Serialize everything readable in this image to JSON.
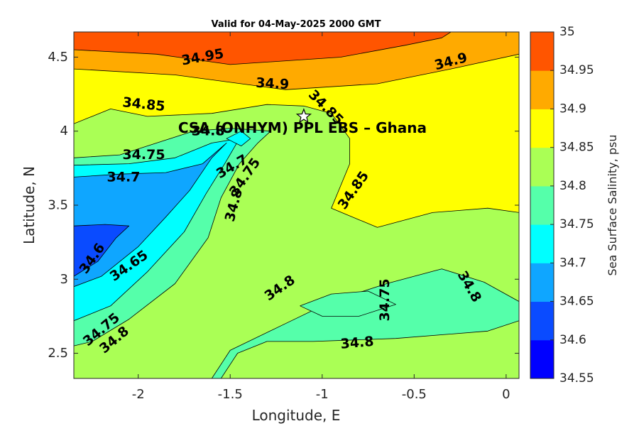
{
  "chart_data": {
    "type": "filled-contour",
    "title": "Valid for 04-May-2025 2000 GMT",
    "xlabel": "Longitude, E",
    "ylabel": "Latitude, N",
    "xlim": [
      -2.35,
      0.07
    ],
    "ylim": [
      2.33,
      4.67
    ],
    "x_ticks": [
      -2,
      -1.5,
      -1,
      -0.5,
      0
    ],
    "x_tick_labels": [
      "-2",
      "-1.5",
      "-1",
      "-0.5",
      "0"
    ],
    "y_ticks": [
      2.5,
      3,
      3.5,
      4,
      4.5
    ],
    "y_tick_labels": [
      "2.5",
      "3",
      "3.5",
      "4",
      "4.5"
    ],
    "colorbar": {
      "label": "Sea Surface Salinity, psu",
      "levels": [
        34.55,
        34.6,
        34.65,
        34.7,
        34.75,
        34.8,
        34.85,
        34.9,
        34.95,
        35
      ],
      "level_labels": [
        "34.55",
        "34.6",
        "34.65",
        "34.7",
        "34.75",
        "34.8",
        "34.85",
        "34.9",
        "34.95",
        "35"
      ],
      "colors": [
        "#0000ff",
        "#0a4bff",
        "#0fa6ff",
        "#00ffff",
        "#55ffaa",
        "#aaff55",
        "#ffff00",
        "#ffaa00",
        "#ff5500"
      ]
    },
    "site": {
      "label": "CSA (ONHYM) PPL EBS  – Ghana",
      "lon": -1.1,
      "lat": 4.1
    },
    "contour_labels": [
      {
        "text": "34.95",
        "lon": -1.65,
        "lat": 4.5,
        "angle": -10
      },
      {
        "text": "34.9",
        "lon": -1.27,
        "lat": 4.32,
        "angle": 3
      },
      {
        "text": "34.9",
        "lon": -0.3,
        "lat": 4.47,
        "angle": -15
      },
      {
        "text": "34.85",
        "lon": -1.97,
        "lat": 4.18,
        "angle": 6
      },
      {
        "text": "34.85",
        "lon": -0.98,
        "lat": 4.16,
        "angle": 45
      },
      {
        "text": "34.85",
        "lon": -0.83,
        "lat": 3.6,
        "angle": -55
      },
      {
        "text": "34.8",
        "lon": -1.62,
        "lat": 4.0,
        "angle": 0
      },
      {
        "text": "34.75",
        "lon": -1.97,
        "lat": 3.84,
        "angle": 0
      },
      {
        "text": "34.7",
        "lon": -2.08,
        "lat": 3.69,
        "angle": 0
      },
      {
        "text": "34.7",
        "lon": -1.49,
        "lat": 3.76,
        "angle": -30
      },
      {
        "text": "34.75",
        "lon": -1.42,
        "lat": 3.69,
        "angle": -55
      },
      {
        "text": "34.8",
        "lon": -1.48,
        "lat": 3.5,
        "angle": -75
      },
      {
        "text": "34.6",
        "lon": -2.25,
        "lat": 3.14,
        "angle": -55
      },
      {
        "text": "34.65",
        "lon": -2.05,
        "lat": 3.09,
        "angle": -35
      },
      {
        "text": "34.75",
        "lon": -2.2,
        "lat": 2.66,
        "angle": -40
      },
      {
        "text": "34.8",
        "lon": -2.13,
        "lat": 2.59,
        "angle": -40
      },
      {
        "text": "34.8",
        "lon": -1.23,
        "lat": 2.94,
        "angle": -35
      },
      {
        "text": "34.75",
        "lon": -0.66,
        "lat": 2.86,
        "angle": -90
      },
      {
        "text": "34.8",
        "lon": -0.2,
        "lat": 2.95,
        "angle": 60
      },
      {
        "text": "34.8",
        "lon": -0.81,
        "lat": 2.57,
        "angle": -5
      }
    ],
    "filled_regions": [
      {
        "level": 34.8,
        "points": [
          [
            -2.35,
            2.33
          ],
          [
            0.07,
            2.33
          ],
          [
            0.07,
            4.67
          ],
          [
            -2.35,
            4.67
          ]
        ]
      },
      {
        "level": 34.75,
        "points": [
          [
            -2.35,
            2.55
          ],
          [
            -2.25,
            2.58
          ],
          [
            -2.05,
            2.73
          ],
          [
            -1.8,
            2.97
          ],
          [
            -1.62,
            3.28
          ],
          [
            -1.55,
            3.55
          ],
          [
            -1.45,
            3.78
          ],
          [
            -1.35,
            3.92
          ],
          [
            -1.28,
            4.0
          ],
          [
            -1.5,
            4.02
          ],
          [
            -1.7,
            4.0
          ],
          [
            -1.9,
            3.92
          ],
          [
            -2.1,
            3.84
          ],
          [
            -2.35,
            3.82
          ]
        ]
      },
      {
        "level": 34.75,
        "points": [
          [
            -1.6,
            2.33
          ],
          [
            -1.5,
            2.52
          ],
          [
            -1.2,
            2.7
          ],
          [
            -0.95,
            2.85
          ],
          [
            -0.65,
            2.97
          ],
          [
            -0.35,
            3.07
          ],
          [
            -0.12,
            2.98
          ],
          [
            0.07,
            2.85
          ],
          [
            0.07,
            2.33
          ]
        ]
      },
      {
        "level": 34.8,
        "points": [
          [
            -1.55,
            2.33
          ],
          [
            -1.46,
            2.5
          ],
          [
            -1.3,
            2.58
          ],
          [
            -1.05,
            2.58
          ],
          [
            -0.6,
            2.6
          ],
          [
            -0.1,
            2.65
          ],
          [
            0.07,
            2.72
          ],
          [
            0.07,
            2.33
          ]
        ]
      },
      {
        "level": 34.7,
        "points": [
          [
            -2.35,
            2.72
          ],
          [
            -2.15,
            2.82
          ],
          [
            -1.95,
            3.05
          ],
          [
            -1.75,
            3.32
          ],
          [
            -1.63,
            3.58
          ],
          [
            -1.53,
            3.78
          ],
          [
            -1.45,
            3.95
          ],
          [
            -1.6,
            3.92
          ],
          [
            -1.8,
            3.82
          ],
          [
            -2.05,
            3.78
          ],
          [
            -2.35,
            3.77
          ]
        ]
      },
      {
        "level": 34.65,
        "points": [
          [
            -2.35,
            2.95
          ],
          [
            -2.2,
            3.02
          ],
          [
            -2.0,
            3.22
          ],
          [
            -1.85,
            3.42
          ],
          [
            -1.72,
            3.6
          ],
          [
            -1.6,
            3.82
          ],
          [
            -1.52,
            3.92
          ],
          [
            -1.65,
            3.78
          ],
          [
            -1.85,
            3.72
          ],
          [
            -2.1,
            3.71
          ],
          [
            -2.35,
            3.69
          ]
        ]
      },
      {
        "level": 34.6,
        "points": [
          [
            -2.35,
            3.02
          ],
          [
            -2.22,
            3.12
          ],
          [
            -2.12,
            3.28
          ],
          [
            -2.05,
            3.36
          ],
          [
            -2.18,
            3.37
          ],
          [
            -2.35,
            3.36
          ]
        ]
      },
      {
        "level": 34.7,
        "points": [
          [
            -1.52,
            3.95
          ],
          [
            -1.44,
            3.9
          ],
          [
            -1.39,
            3.95
          ],
          [
            -1.44,
            4.0
          ]
        ]
      },
      {
        "level": 34.75,
        "points": [
          [
            -1.12,
            2.82
          ],
          [
            -0.95,
            2.9
          ],
          [
            -0.75,
            2.92
          ],
          [
            -0.6,
            2.83
          ],
          [
            -0.8,
            2.75
          ],
          [
            -1.0,
            2.75
          ]
        ]
      },
      {
        "level": 34.85,
        "points": [
          [
            -2.35,
            4.05
          ],
          [
            -2.15,
            4.15
          ],
          [
            -1.95,
            4.1
          ],
          [
            -1.6,
            4.12
          ],
          [
            -1.3,
            4.18
          ],
          [
            -1.1,
            4.17
          ],
          [
            -0.95,
            4.12
          ],
          [
            -0.85,
            3.95
          ],
          [
            -0.85,
            3.78
          ],
          [
            -0.95,
            3.48
          ],
          [
            -0.7,
            3.35
          ],
          [
            -0.4,
            3.45
          ],
          [
            -0.1,
            3.48
          ],
          [
            0.07,
            3.45
          ],
          [
            0.07,
            4.67
          ],
          [
            -2.35,
            4.67
          ]
        ]
      },
      {
        "level": 34.9,
        "points": [
          [
            -2.35,
            4.42
          ],
          [
            -1.8,
            4.38
          ],
          [
            -1.2,
            4.28
          ],
          [
            -0.7,
            4.32
          ],
          [
            -0.3,
            4.42
          ],
          [
            0.07,
            4.52
          ],
          [
            0.07,
            4.67
          ],
          [
            -2.35,
            4.67
          ]
        ]
      },
      {
        "level": 34.95,
        "points": [
          [
            -2.35,
            4.55
          ],
          [
            -1.9,
            4.52
          ],
          [
            -1.5,
            4.45
          ],
          [
            -0.9,
            4.5
          ],
          [
            -0.55,
            4.58
          ],
          [
            -0.35,
            4.63
          ],
          [
            -0.3,
            4.67
          ],
          [
            -2.35,
            4.67
          ]
        ]
      }
    ]
  }
}
